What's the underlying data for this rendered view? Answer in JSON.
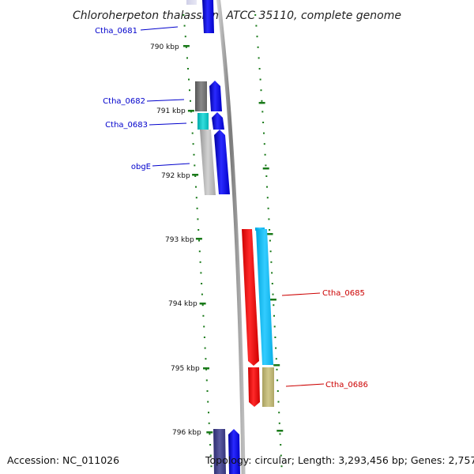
{
  "title": "Chloroherpeton thalassium ATCC 35110, complete genome",
  "footer": {
    "accession": "Accession: NC_011026",
    "topology": "Topology: circular; Length: 3,293,456 bp; Genes: 2,757"
  },
  "colors": {
    "plus_strand_label": "#0000cc",
    "minus_strand_label": "#cc0000",
    "tick": "#1a7a1a",
    "backbone": "#8c8c8c"
  },
  "kbp_marks": [
    {
      "label": "790 kbp",
      "position_kbp": 790
    },
    {
      "label": "791 kbp",
      "position_kbp": 791
    },
    {
      "label": "792 kbp",
      "position_kbp": 792
    },
    {
      "label": "793 kbp",
      "position_kbp": 793
    },
    {
      "label": "794 kbp",
      "position_kbp": 794
    },
    {
      "label": "795 kbp",
      "position_kbp": 795
    },
    {
      "label": "796 kbp",
      "position_kbp": 796
    }
  ],
  "gene_labels": [
    {
      "name": "Ctha_0681",
      "strand": "plus"
    },
    {
      "name": "Ctha_0682",
      "strand": "plus"
    },
    {
      "name": "Ctha_0683",
      "strand": "plus"
    },
    {
      "name": "obgE",
      "strand": "plus"
    },
    {
      "name": "Ctha_0685",
      "strand": "minus"
    },
    {
      "name": "Ctha_0686",
      "strand": "minus"
    }
  ]
}
